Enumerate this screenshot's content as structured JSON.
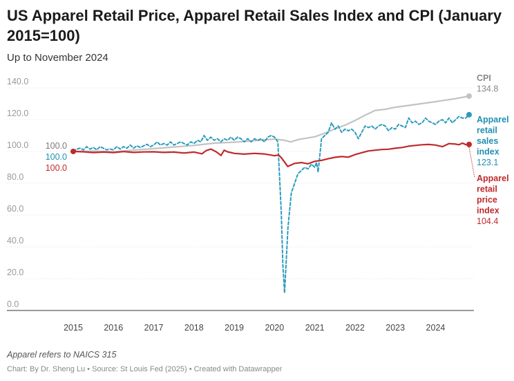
{
  "header": {
    "title": "US Apparel Retail Price, Apparel Retail Sales Index and CPI (January 2015=100)",
    "subtitle": "Up to November 2024"
  },
  "footer": {
    "note": "Apparel refers to NAICS 315",
    "credit": "Chart: By Dr. Sheng Lu • Source: St Louis Fed (2025) • Created with Datawrapper"
  },
  "colors": {
    "cpi": "#c2c2c2",
    "sales": "#2a9bbd",
    "price": "#c0292b",
    "grid": "#e5e5e5"
  },
  "chart_data": {
    "type": "line",
    "title": "US Apparel Retail Price, Apparel Retail Sales Index and CPI (January 2015=100)",
    "xlabel": "",
    "ylabel": "",
    "xlim": [
      2015.0,
      2024.833
    ],
    "ylim": [
      0,
      140
    ],
    "y_ticks": [
      "0.0",
      "20.0",
      "40.0",
      "60.0",
      "80.0",
      "100.0",
      "120.0",
      "140.0"
    ],
    "x_ticks": [
      "2015",
      "2016",
      "2017",
      "2018",
      "2019",
      "2020",
      "2021",
      "2022",
      "2023",
      "2024"
    ],
    "grid": true,
    "series": [
      {
        "name": "CPI",
        "label_lines": [
          "CPI"
        ],
        "start_label": "100.0",
        "end_label": "134.8",
        "style": "solid",
        "points": [
          [
            2015.0,
            100
          ],
          [
            2015.5,
            100.2
          ],
          [
            2016.0,
            99.8
          ],
          [
            2016.5,
            100.8
          ],
          [
            2017.0,
            101.8
          ],
          [
            2017.5,
            102.8
          ],
          [
            2018.0,
            103.8
          ],
          [
            2018.5,
            105.2
          ],
          [
            2019.0,
            105.8
          ],
          [
            2019.5,
            106.8
          ],
          [
            2020.0,
            107.8
          ],
          [
            2020.25,
            107.0
          ],
          [
            2020.4,
            106.0
          ],
          [
            2020.6,
            107.5
          ],
          [
            2021.0,
            109.2
          ],
          [
            2021.25,
            111.5
          ],
          [
            2021.5,
            114.2
          ],
          [
            2021.75,
            116.5
          ],
          [
            2022.0,
            119.5
          ],
          [
            2022.25,
            122.8
          ],
          [
            2022.5,
            125.8
          ],
          [
            2022.75,
            126.5
          ],
          [
            2023.0,
            127.8
          ],
          [
            2023.5,
            129.5
          ],
          [
            2024.0,
            131.3
          ],
          [
            2024.5,
            133.2
          ],
          [
            2024.833,
            134.8
          ]
        ]
      },
      {
        "name": "Apparel retail sales index",
        "label_lines": [
          "Apparel",
          "retail",
          "sales",
          "index"
        ],
        "start_label": "100.0",
        "end_label": "123.1",
        "style": "dashed",
        "points": [
          [
            2015.0,
            100
          ],
          [
            2015.083,
            101.5
          ],
          [
            2015.167,
            102
          ],
          [
            2015.25,
            101
          ],
          [
            2015.333,
            103
          ],
          [
            2015.417,
            101.5
          ],
          [
            2015.5,
            102.5
          ],
          [
            2015.583,
            101
          ],
          [
            2015.667,
            103
          ],
          [
            2015.75,
            102
          ],
          [
            2015.833,
            101
          ],
          [
            2015.917,
            101.5
          ],
          [
            2016.0,
            101
          ],
          [
            2016.083,
            103
          ],
          [
            2016.167,
            101.5
          ],
          [
            2016.25,
            103
          ],
          [
            2016.333,
            102
          ],
          [
            2016.417,
            104
          ],
          [
            2016.5,
            102
          ],
          [
            2016.583,
            103.5
          ],
          [
            2016.667,
            102.5
          ],
          [
            2016.75,
            103.5
          ],
          [
            2016.833,
            104.5
          ],
          [
            2016.917,
            103
          ],
          [
            2017.0,
            104
          ],
          [
            2017.083,
            106
          ],
          [
            2017.167,
            104
          ],
          [
            2017.25,
            105
          ],
          [
            2017.333,
            104
          ],
          [
            2017.417,
            106
          ],
          [
            2017.5,
            104
          ],
          [
            2017.583,
            105
          ],
          [
            2017.667,
            106
          ],
          [
            2017.75,
            105
          ],
          [
            2017.833,
            104
          ],
          [
            2017.917,
            106
          ],
          [
            2018.0,
            105
          ],
          [
            2018.083,
            107
          ],
          [
            2018.167,
            106
          ],
          [
            2018.25,
            110
          ],
          [
            2018.333,
            107
          ],
          [
            2018.417,
            109
          ],
          [
            2018.5,
            107
          ],
          [
            2018.583,
            108
          ],
          [
            2018.667,
            106
          ],
          [
            2018.75,
            108
          ],
          [
            2018.833,
            107
          ],
          [
            2018.917,
            109
          ],
          [
            2019.0,
            107
          ],
          [
            2019.083,
            109
          ],
          [
            2019.167,
            108
          ],
          [
            2019.25,
            106
          ],
          [
            2019.333,
            108
          ],
          [
            2019.417,
            106
          ],
          [
            2019.5,
            108
          ],
          [
            2019.583,
            107
          ],
          [
            2019.667,
            108
          ],
          [
            2019.75,
            106
          ],
          [
            2019.833,
            109
          ],
          [
            2019.917,
            110
          ],
          [
            2020.0,
            109
          ],
          [
            2020.083,
            106
          ],
          [
            2020.167,
            62
          ],
          [
            2020.208,
            28
          ],
          [
            2020.25,
            11
          ],
          [
            2020.333,
            52
          ],
          [
            2020.417,
            74
          ],
          [
            2020.5,
            80
          ],
          [
            2020.583,
            86
          ],
          [
            2020.667,
            88
          ],
          [
            2020.75,
            90
          ],
          [
            2020.833,
            89
          ],
          [
            2020.917,
            92
          ],
          [
            2021.0,
            90
          ],
          [
            2021.042,
            93
          ],
          [
            2021.083,
            87
          ],
          [
            2021.167,
            108
          ],
          [
            2021.25,
            110
          ],
          [
            2021.333,
            112
          ],
          [
            2021.417,
            118
          ],
          [
            2021.5,
            114
          ],
          [
            2021.583,
            116
          ],
          [
            2021.667,
            112
          ],
          [
            2021.75,
            114
          ],
          [
            2021.833,
            113
          ],
          [
            2021.917,
            114
          ],
          [
            2022.0,
            112
          ],
          [
            2022.083,
            108
          ],
          [
            2022.167,
            112
          ],
          [
            2022.25,
            116
          ],
          [
            2022.333,
            115
          ],
          [
            2022.417,
            116
          ],
          [
            2022.5,
            114
          ],
          [
            2022.583,
            116
          ],
          [
            2022.667,
            117
          ],
          [
            2022.75,
            116
          ],
          [
            2022.833,
            113
          ],
          [
            2022.917,
            115
          ],
          [
            2023.0,
            114
          ],
          [
            2023.083,
            117
          ],
          [
            2023.167,
            116
          ],
          [
            2023.25,
            115
          ],
          [
            2023.333,
            121
          ],
          [
            2023.417,
            118
          ],
          [
            2023.5,
            119
          ],
          [
            2023.583,
            117
          ],
          [
            2023.667,
            118
          ],
          [
            2023.75,
            121
          ],
          [
            2023.833,
            119
          ],
          [
            2023.917,
            118
          ],
          [
            2024.0,
            117
          ],
          [
            2024.083,
            119
          ],
          [
            2024.167,
            120
          ],
          [
            2024.25,
            118
          ],
          [
            2024.333,
            121
          ],
          [
            2024.417,
            118
          ],
          [
            2024.5,
            120
          ],
          [
            2024.583,
            122
          ],
          [
            2024.667,
            121
          ],
          [
            2024.75,
            121
          ],
          [
            2024.833,
            123.1
          ]
        ]
      },
      {
        "name": "Apparel retail price index",
        "label_lines": [
          "Apparel",
          "retail",
          "price",
          "index"
        ],
        "start_label": "100.0",
        "end_label": "104.4",
        "style": "solid",
        "points": [
          [
            2015.0,
            100
          ],
          [
            2015.25,
            99.8
          ],
          [
            2015.5,
            99.3
          ],
          [
            2015.75,
            99.6
          ],
          [
            2016.0,
            99.3
          ],
          [
            2016.25,
            99.9
          ],
          [
            2016.5,
            99.4
          ],
          [
            2016.75,
            99.7
          ],
          [
            2017.0,
            99.8
          ],
          [
            2017.25,
            99.4
          ],
          [
            2017.5,
            99.6
          ],
          [
            2017.75,
            99.0
          ],
          [
            2018.0,
            99.6
          ],
          [
            2018.2,
            98.5
          ],
          [
            2018.3,
            100.5
          ],
          [
            2018.42,
            101.5
          ],
          [
            2018.55,
            99.8
          ],
          [
            2018.67,
            97.5
          ],
          [
            2018.75,
            100.8
          ],
          [
            2018.83,
            99.8
          ],
          [
            2019.0,
            98.8
          ],
          [
            2019.25,
            98.3
          ],
          [
            2019.5,
            98.8
          ],
          [
            2019.75,
            98.4
          ],
          [
            2020.0,
            97.3
          ],
          [
            2020.1,
            97.8
          ],
          [
            2020.17,
            96.0
          ],
          [
            2020.33,
            90.5
          ],
          [
            2020.5,
            92.5
          ],
          [
            2020.67,
            93.0
          ],
          [
            2020.83,
            92.2
          ],
          [
            2021.0,
            93.8
          ],
          [
            2021.17,
            94.4
          ],
          [
            2021.33,
            95.4
          ],
          [
            2021.5,
            96.3
          ],
          [
            2021.67,
            96.8
          ],
          [
            2021.83,
            96.4
          ],
          [
            2022.0,
            98.0
          ],
          [
            2022.17,
            99.2
          ],
          [
            2022.33,
            100.3
          ],
          [
            2022.5,
            100.8
          ],
          [
            2022.67,
            101.2
          ],
          [
            2022.83,
            101.4
          ],
          [
            2023.0,
            102.0
          ],
          [
            2023.17,
            102.5
          ],
          [
            2023.33,
            103.3
          ],
          [
            2023.5,
            103.8
          ],
          [
            2023.67,
            104.2
          ],
          [
            2023.83,
            104.4
          ],
          [
            2024.0,
            104.0
          ],
          [
            2024.17,
            103.0
          ],
          [
            2024.33,
            104.9
          ],
          [
            2024.5,
            104.6
          ],
          [
            2024.58,
            104.2
          ],
          [
            2024.67,
            105.2
          ],
          [
            2024.75,
            104.3
          ],
          [
            2024.833,
            104.4
          ]
        ]
      }
    ]
  }
}
